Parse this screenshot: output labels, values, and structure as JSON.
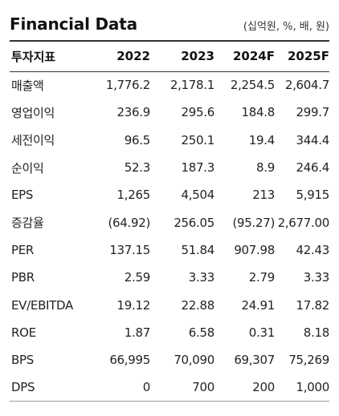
{
  "header": {
    "title": "Financial Data",
    "unit": "(십억원, %, 배, 원)"
  },
  "table": {
    "columns": [
      "투자지표",
      "2022",
      "2023",
      "2024F",
      "2025F"
    ],
    "rows": [
      {
        "label": "매출액",
        "values": [
          "1,776.2",
          "2,178.1",
          "2,254.5",
          "2,604.7"
        ]
      },
      {
        "label": "영업이익",
        "values": [
          "236.9",
          "295.6",
          "184.8",
          "299.7"
        ]
      },
      {
        "label": "세전이익",
        "values": [
          "96.5",
          "250.1",
          "19.4",
          "344.4"
        ]
      },
      {
        "label": "순이익",
        "values": [
          "52.3",
          "187.3",
          "8.9",
          "246.4"
        ]
      },
      {
        "label": "EPS",
        "values": [
          "1,265",
          "4,504",
          "213",
          "5,915"
        ]
      },
      {
        "label": "증감율",
        "values": [
          "(64.92)",
          "256.05",
          "(95.27)",
          "2,677.00"
        ]
      },
      {
        "label": "PER",
        "values": [
          "137.15",
          "51.84",
          "907.98",
          "42.43"
        ]
      },
      {
        "label": "PBR",
        "values": [
          "2.59",
          "3.33",
          "2.79",
          "3.33"
        ]
      },
      {
        "label": "EV/EBITDA",
        "values": [
          "19.12",
          "22.88",
          "24.91",
          "17.82"
        ]
      },
      {
        "label": "ROE",
        "values": [
          "1.87",
          "6.58",
          "0.31",
          "8.18"
        ]
      },
      {
        "label": "BPS",
        "values": [
          "66,995",
          "70,090",
          "69,307",
          "75,269"
        ]
      },
      {
        "label": "DPS",
        "values": [
          "0",
          "700",
          "200",
          "1,000"
        ]
      }
    ]
  }
}
